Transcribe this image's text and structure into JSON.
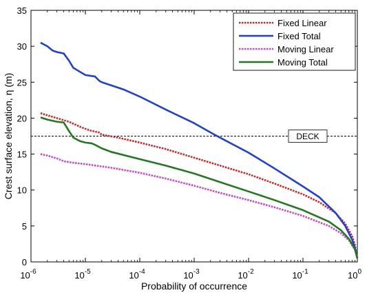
{
  "chart_data": {
    "type": "line",
    "xlabel": "Probability of occurrence",
    "ylabel": "Crest surface elevation,  η (m)",
    "x_scale": "log",
    "xlim": [
      1e-06,
      1
    ],
    "ylim": [
      0,
      35
    ],
    "yticks": [
      0,
      5,
      10,
      15,
      20,
      25,
      30,
      35
    ],
    "xticks": [
      {
        "value": 1e-06,
        "base": "10",
        "exp": "-6"
      },
      {
        "value": 1e-05,
        "base": "10",
        "exp": "-5"
      },
      {
        "value": 0.0001,
        "base": "10",
        "exp": "-4"
      },
      {
        "value": 0.001,
        "base": "10",
        "exp": "-3"
      },
      {
        "value": 0.01,
        "base": "10",
        "exp": "-2"
      },
      {
        "value": 0.1,
        "base": "10",
        "exp": "-1"
      },
      {
        "value": 1,
        "base": "10",
        "exp": "0"
      }
    ],
    "grid": false,
    "legend_position": "top-right",
    "reference_lines": [
      {
        "label": "DECK",
        "y": 17.5,
        "color": "#000000",
        "style": "dashed"
      }
    ],
    "series": [
      {
        "name": "Fixed Linear",
        "color": "#d62020",
        "style": "dotted",
        "points": [
          [
            1.5e-06,
            20.7
          ],
          [
            2e-06,
            20.4
          ],
          [
            3e-06,
            20.0
          ],
          [
            5e-06,
            19.5
          ],
          [
            8e-06,
            18.8
          ],
          [
            1.2e-05,
            18.3
          ],
          [
            1.8e-05,
            18.0
          ],
          [
            2e-05,
            17.7
          ],
          [
            4e-05,
            17.3
          ],
          [
            0.0001,
            16.6
          ],
          [
            0.0003,
            15.7
          ],
          [
            0.001,
            14.5
          ],
          [
            0.003,
            13.4
          ],
          [
            0.01,
            12.2
          ],
          [
            0.03,
            10.9
          ],
          [
            0.1,
            9.4
          ],
          [
            0.2,
            8.3
          ],
          [
            0.4,
            6.8
          ],
          [
            0.6,
            5.3
          ],
          [
            0.8,
            3.6
          ],
          [
            0.9,
            2.4
          ],
          [
            1,
            0.5
          ]
        ]
      },
      {
        "name": "Fixed Total",
        "color": "#1f3fd6",
        "style": "solid",
        "points": [
          [
            1.5e-06,
            30.5
          ],
          [
            2e-06,
            30.0
          ],
          [
            2.5e-06,
            29.4
          ],
          [
            3e-06,
            29.2
          ],
          [
            4e-06,
            29.0
          ],
          [
            5e-06,
            28.0
          ],
          [
            6e-06,
            27.0
          ],
          [
            7e-06,
            26.7
          ],
          [
            1e-05,
            26.0
          ],
          [
            1.5e-05,
            25.8
          ],
          [
            1.8e-05,
            25.2
          ],
          [
            2e-05,
            25.0
          ],
          [
            5e-05,
            24.0
          ],
          [
            0.0001,
            23.0
          ],
          [
            0.0003,
            21.2
          ],
          [
            0.001,
            19.3
          ],
          [
            0.0025,
            17.6
          ],
          [
            0.01,
            15.2
          ],
          [
            0.03,
            13.0
          ],
          [
            0.1,
            10.5
          ],
          [
            0.2,
            9.0
          ],
          [
            0.4,
            6.8
          ],
          [
            0.6,
            5.0
          ],
          [
            0.8,
            3.1
          ],
          [
            0.9,
            2.0
          ],
          [
            1,
            0.5
          ]
        ]
      },
      {
        "name": "Moving Linear",
        "color": "#cc44cc",
        "style": "dotted",
        "points": [
          [
            1.5e-06,
            15.0
          ],
          [
            2e-06,
            14.8
          ],
          [
            3e-06,
            14.4
          ],
          [
            4e-06,
            14.0
          ],
          [
            6e-06,
            13.8
          ],
          [
            1e-05,
            13.6
          ],
          [
            3e-05,
            13.1
          ],
          [
            0.0001,
            12.4
          ],
          [
            0.0003,
            11.6
          ],
          [
            0.001,
            10.6
          ],
          [
            0.003,
            9.6
          ],
          [
            0.01,
            8.6
          ],
          [
            0.03,
            7.6
          ],
          [
            0.1,
            6.4
          ],
          [
            0.3,
            5.0
          ],
          [
            0.5,
            4.0
          ],
          [
            0.7,
            3.0
          ],
          [
            0.9,
            1.7
          ],
          [
            1,
            0.5
          ]
        ]
      },
      {
        "name": "Moving Total",
        "color": "#1f7a1f",
        "style": "solid",
        "points": [
          [
            1.5e-06,
            20.1
          ],
          [
            2e-06,
            19.8
          ],
          [
            3e-06,
            19.5
          ],
          [
            4e-06,
            19.4
          ],
          [
            5e-06,
            18.2
          ],
          [
            6e-06,
            17.3
          ],
          [
            8e-06,
            16.8
          ],
          [
            1e-05,
            16.6
          ],
          [
            1.3e-05,
            16.5
          ],
          [
            1.5e-05,
            16.3
          ],
          [
            2e-05,
            15.8
          ],
          [
            3e-05,
            15.3
          ],
          [
            0.0001,
            14.3
          ],
          [
            0.0003,
            13.4
          ],
          [
            0.001,
            12.3
          ],
          [
            0.003,
            11.1
          ],
          [
            0.01,
            9.8
          ],
          [
            0.03,
            8.6
          ],
          [
            0.1,
            7.2
          ],
          [
            0.3,
            5.6
          ],
          [
            0.5,
            4.4
          ],
          [
            0.7,
            3.2
          ],
          [
            0.9,
            1.8
          ],
          [
            1,
            0.5
          ]
        ]
      }
    ]
  }
}
